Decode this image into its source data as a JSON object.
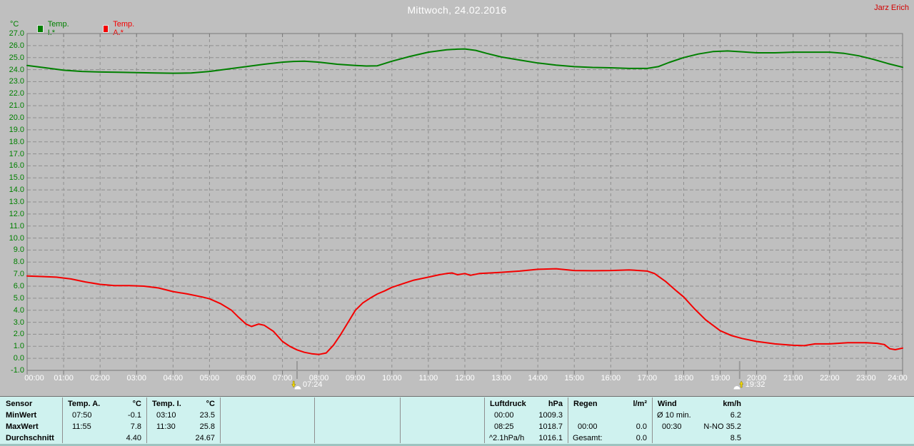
{
  "header": {
    "title": "Mittwoch, 24.02.2016",
    "user": "Jarz Erich"
  },
  "legend": {
    "unit": "°C",
    "items": [
      {
        "label": "Temp. I.*",
        "color": "#008000"
      },
      {
        "label": "Temp. A.*",
        "color": "#f40000"
      }
    ]
  },
  "chart_data": {
    "type": "line",
    "title": "Mittwoch, 24.02.2016",
    "ylabel": "°C",
    "ylim": [
      -1.0,
      27.0
    ],
    "ystep": 1.0,
    "xlim_hours": [
      0,
      24
    ],
    "grid": "dashed",
    "legend_position": "top-left",
    "y_tick_labels": [
      "27.0",
      "26.0",
      "25.0",
      "24.0",
      "23.0",
      "22.0",
      "21.0",
      "20.0",
      "19.0",
      "18.0",
      "17.0",
      "16.0",
      "15.0",
      "14.0",
      "13.0",
      "12.0",
      "11.0",
      "10.0",
      "9.0",
      "8.0",
      "7.0",
      "6.0",
      "5.0",
      "4.0",
      "3.0",
      "2.0",
      "1.0",
      "0.0",
      "-1.0"
    ],
    "x_tick_labels": [
      "00:00",
      "01:00",
      "02:00",
      "03:00",
      "04:00",
      "05:00",
      "06:00",
      "07:00",
      "08:00",
      "09:00",
      "10:00",
      "11:00",
      "12:00",
      "13:00",
      "14:00",
      "15:00",
      "16:00",
      "17:00",
      "18:00",
      "19:00",
      "20:00",
      "21:00",
      "22:00",
      "23:00",
      "24:00"
    ],
    "sun_markers": [
      {
        "type": "sunrise",
        "label": "07:24",
        "hour": 7.4
      },
      {
        "type": "sunset",
        "label": "19:32",
        "hour": 19.533
      }
    ],
    "series": [
      {
        "name": "Temp. I.*",
        "color": "#008000",
        "points": [
          [
            0,
            24.35
          ],
          [
            0.5,
            24.15
          ],
          [
            1,
            23.95
          ],
          [
            1.5,
            23.85
          ],
          [
            2,
            23.8
          ],
          [
            2.5,
            23.78
          ],
          [
            3,
            23.75
          ],
          [
            3.5,
            23.72
          ],
          [
            4,
            23.7
          ],
          [
            4.5,
            23.72
          ],
          [
            5,
            23.85
          ],
          [
            5.5,
            24.05
          ],
          [
            6,
            24.25
          ],
          [
            6.5,
            24.45
          ],
          [
            7,
            24.62
          ],
          [
            7.3,
            24.68
          ],
          [
            7.6,
            24.7
          ],
          [
            8,
            24.62
          ],
          [
            8.5,
            24.45
          ],
          [
            9,
            24.35
          ],
          [
            9.3,
            24.3
          ],
          [
            9.6,
            24.32
          ],
          [
            10,
            24.7
          ],
          [
            10.5,
            25.1
          ],
          [
            11,
            25.45
          ],
          [
            11.5,
            25.65
          ],
          [
            11.8,
            25.7
          ],
          [
            12,
            25.72
          ],
          [
            12.3,
            25.6
          ],
          [
            12.6,
            25.35
          ],
          [
            13,
            25.05
          ],
          [
            13.5,
            24.8
          ],
          [
            14,
            24.55
          ],
          [
            14.5,
            24.38
          ],
          [
            15,
            24.25
          ],
          [
            15.5,
            24.18
          ],
          [
            16,
            24.15
          ],
          [
            16.5,
            24.1
          ],
          [
            17,
            24.1
          ],
          [
            17.3,
            24.25
          ],
          [
            17.6,
            24.6
          ],
          [
            18,
            25.0
          ],
          [
            18.4,
            25.3
          ],
          [
            18.8,
            25.5
          ],
          [
            19.2,
            25.55
          ],
          [
            19.6,
            25.48
          ],
          [
            20,
            25.4
          ],
          [
            20.5,
            25.4
          ],
          [
            21,
            25.45
          ],
          [
            21.5,
            25.45
          ],
          [
            22,
            25.45
          ],
          [
            22.4,
            25.35
          ],
          [
            22.8,
            25.15
          ],
          [
            23.2,
            24.85
          ],
          [
            23.6,
            24.5
          ],
          [
            24,
            24.2
          ]
        ]
      },
      {
        "name": "Temp. A.*",
        "color": "#f40000",
        "points": [
          [
            0,
            6.85
          ],
          [
            0.4,
            6.8
          ],
          [
            0.8,
            6.75
          ],
          [
            1.2,
            6.6
          ],
          [
            1.6,
            6.35
          ],
          [
            2,
            6.15
          ],
          [
            2.4,
            6.05
          ],
          [
            2.8,
            6.05
          ],
          [
            3.2,
            6.0
          ],
          [
            3.6,
            5.85
          ],
          [
            4,
            5.55
          ],
          [
            4.4,
            5.35
          ],
          [
            4.8,
            5.1
          ],
          [
            5,
            4.95
          ],
          [
            5.3,
            4.55
          ],
          [
            5.6,
            4.0
          ],
          [
            5.8,
            3.4
          ],
          [
            6,
            2.85
          ],
          [
            6.15,
            2.65
          ],
          [
            6.35,
            2.85
          ],
          [
            6.5,
            2.75
          ],
          [
            6.75,
            2.25
          ],
          [
            7,
            1.4
          ],
          [
            7.2,
            1.0
          ],
          [
            7.4,
            0.7
          ],
          [
            7.6,
            0.5
          ],
          [
            7.8,
            0.38
          ],
          [
            8,
            0.32
          ],
          [
            8.2,
            0.45
          ],
          [
            8.4,
            1.1
          ],
          [
            8.6,
            2.0
          ],
          [
            8.8,
            3.0
          ],
          [
            9,
            4.0
          ],
          [
            9.2,
            4.6
          ],
          [
            9.4,
            5.0
          ],
          [
            9.6,
            5.35
          ],
          [
            9.8,
            5.6
          ],
          [
            10,
            5.9
          ],
          [
            10.3,
            6.2
          ],
          [
            10.6,
            6.5
          ],
          [
            11,
            6.75
          ],
          [
            11.3,
            6.95
          ],
          [
            11.5,
            7.05
          ],
          [
            11.65,
            7.1
          ],
          [
            11.8,
            6.95
          ],
          [
            12,
            7.05
          ],
          [
            12.15,
            6.9
          ],
          [
            12.4,
            7.05
          ],
          [
            12.7,
            7.1
          ],
          [
            13,
            7.15
          ],
          [
            13.5,
            7.25
          ],
          [
            14,
            7.4
          ],
          [
            14.5,
            7.45
          ],
          [
            15,
            7.3
          ],
          [
            15.5,
            7.28
          ],
          [
            16,
            7.3
          ],
          [
            16.5,
            7.35
          ],
          [
            17,
            7.25
          ],
          [
            17.2,
            7.05
          ],
          [
            17.5,
            6.4
          ],
          [
            17.8,
            5.6
          ],
          [
            18,
            5.1
          ],
          [
            18.3,
            4.1
          ],
          [
            18.6,
            3.2
          ],
          [
            19,
            2.3
          ],
          [
            19.3,
            1.9
          ],
          [
            19.6,
            1.65
          ],
          [
            20,
            1.4
          ],
          [
            20.5,
            1.2
          ],
          [
            21,
            1.08
          ],
          [
            21.3,
            1.05
          ],
          [
            21.6,
            1.2
          ],
          [
            22,
            1.2
          ],
          [
            22.5,
            1.3
          ],
          [
            23,
            1.3
          ],
          [
            23.3,
            1.25
          ],
          [
            23.5,
            1.15
          ],
          [
            23.65,
            0.8
          ],
          [
            23.8,
            0.72
          ],
          [
            24,
            0.85
          ]
        ]
      }
    ]
  },
  "stats_table": {
    "row_labels": [
      "Sensor",
      "MinWert",
      "MaxWert",
      "Durchschnitt"
    ],
    "columns": [
      {
        "name": "Temp. A.",
        "unit": "°C",
        "rows": [
          [
            "07:50",
            "-0.1"
          ],
          [
            "11:55",
            "7.8"
          ],
          [
            "",
            "4.40"
          ]
        ]
      },
      {
        "name": "Temp. I.",
        "unit": "°C",
        "rows": [
          [
            "03:10",
            "23.5"
          ],
          [
            "11:30",
            "25.8"
          ],
          [
            "",
            "24.67"
          ]
        ]
      },
      {
        "name": "",
        "unit": "",
        "rows": [
          [
            "",
            ""
          ],
          [
            "",
            ""
          ],
          [
            "",
            ""
          ]
        ]
      },
      {
        "name": "",
        "unit": "",
        "rows": [
          [
            "",
            ""
          ],
          [
            "",
            ""
          ],
          [
            "",
            ""
          ]
        ]
      },
      {
        "name": "",
        "unit": "",
        "rows": [
          [
            "",
            ""
          ],
          [
            "",
            ""
          ],
          [
            "",
            ""
          ]
        ]
      },
      {
        "name": "Luftdruck",
        "unit": "hPa",
        "rows": [
          [
            "00:00",
            "1009.3"
          ],
          [
            "08:25",
            "1018.7"
          ],
          [
            "^2.1hPa/h",
            "1016.1"
          ]
        ]
      },
      {
        "name": "Regen",
        "unit": "l/m²",
        "rows": [
          [
            "",
            ""
          ],
          [
            "00:00",
            "0.0"
          ],
          [
            "Gesamt:",
            "0.0"
          ]
        ]
      },
      {
        "name": "Wind",
        "unit": "km/h",
        "rows": [
          [
            "Ø 10 min.",
            "6.2"
          ],
          [
            "00:30",
            "N-NO 35.2"
          ],
          [
            "",
            "8.5"
          ]
        ]
      }
    ]
  }
}
